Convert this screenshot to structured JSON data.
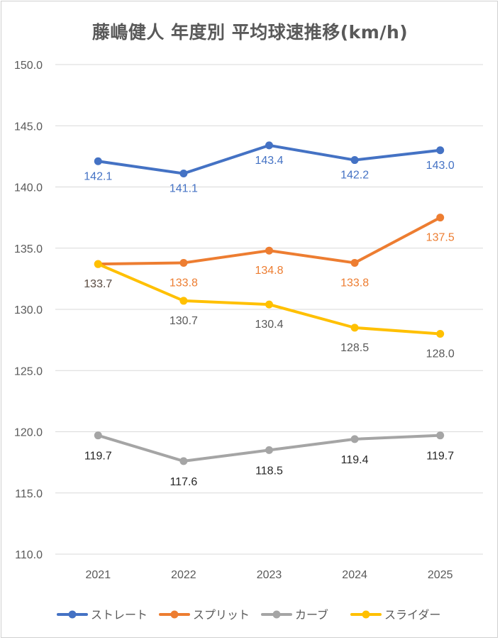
{
  "chart_data": {
    "type": "line",
    "title": "藤嶋健人 年度別 平均球速推移(km/h)",
    "xlabel": "",
    "ylabel": "",
    "categories": [
      "2021",
      "2022",
      "2023",
      "2024",
      "2025"
    ],
    "ylim": [
      110,
      150
    ],
    "yticks": [
      "110.0",
      "115.0",
      "120.0",
      "125.0",
      "130.0",
      "135.0",
      "140.0",
      "145.0",
      "150.0"
    ],
    "grid": true,
    "legend_position": "bottom",
    "series": [
      {
        "name": "ストレート",
        "color": "#4472c4",
        "label_color": "#4472c4",
        "values": [
          142.1,
          141.1,
          143.4,
          142.2,
          143.0
        ],
        "labels": [
          "142.1",
          "141.1",
          "143.4",
          "142.2",
          "143.0"
        ]
      },
      {
        "name": "スプリット",
        "color": "#ed7d31",
        "label_color": "#ed7d31",
        "values": [
          133.7,
          133.8,
          134.8,
          133.8,
          137.5
        ],
        "labels": [
          "133.7",
          "133.8",
          "134.8",
          "133.8",
          "137.5"
        ]
      },
      {
        "name": "カーブ",
        "color": "#a5a5a5",
        "label_color": "#262626",
        "values": [
          119.7,
          117.6,
          118.5,
          119.4,
          119.7
        ],
        "labels": [
          "119.7",
          "117.6",
          "118.5",
          "119.4",
          "119.7"
        ]
      },
      {
        "name": "スライダー",
        "color": "#ffc000",
        "label_color": "#595959",
        "values": [
          133.7,
          130.7,
          130.4,
          128.5,
          128.0
        ],
        "labels": [
          "133.7",
          "130.7",
          "130.4",
          "128.5",
          "128.0"
        ]
      }
    ]
  }
}
